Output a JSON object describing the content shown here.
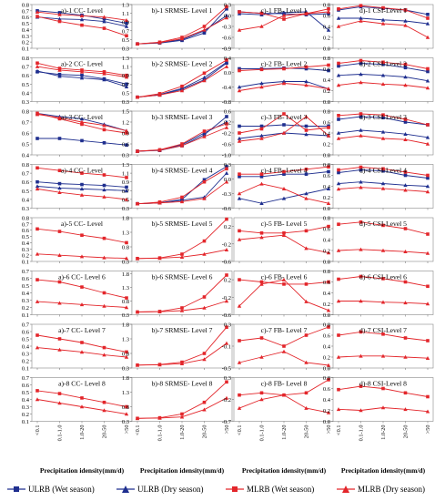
{
  "x_categories": [
    "<0.1",
    "0.1-1.0",
    "1.0-20",
    "20-50",
    ">50"
  ],
  "xlabel": "Precipitation idensity(mm/d)",
  "series_meta": [
    {
      "name": "ULRB (Wet season)",
      "color": "#1f2f8f",
      "marker": "square"
    },
    {
      "name": "ULRB (Dry season)",
      "color": "#1f2f8f",
      "marker": "triangle"
    },
    {
      "name": "MLRB (Wet season)",
      "color": "#e3262b",
      "marker": "square"
    },
    {
      "name": "MLRB (Dry season)",
      "color": "#e3262b",
      "marker": "triangle"
    }
  ],
  "chart_data": [
    {
      "type": "line",
      "title": "a)-1  CC-  Level",
      "ylim": [
        0.1,
        0.8
      ],
      "yticks": [
        0.1,
        0.2,
        0.3,
        0.4,
        0.5,
        0.6,
        0.7,
        0.8
      ],
      "series": [
        [
          0.7,
          0.67,
          0.63,
          0.57,
          0.5
        ],
        [
          0.6,
          0.57,
          0.56,
          0.53,
          0.45
        ],
        [
          0.61,
          0.53,
          0.47,
          0.42,
          0.3
        ],
        [
          0.68,
          0.64,
          0.62,
          0.6,
          0.55
        ]
      ]
    },
    {
      "type": "line",
      "title": "b)-1 SRMSE- Level 1",
      "ylim": [
        0.3,
        1.3
      ],
      "yticks": [
        0.3,
        0.5,
        0.7,
        0.9,
        1.1,
        1.3
      ],
      "series": [
        [
          0.4,
          0.42,
          0.48,
          0.65,
          1.2
        ],
        [
          0.4,
          0.43,
          0.5,
          0.7,
          1.05
        ],
        [
          0.4,
          0.44,
          0.55,
          0.8,
          1.25
        ],
        [
          0.4,
          0.43,
          0.52,
          0.72,
          1.0
        ]
      ]
    },
    {
      "type": "line",
      "title": "c)-1 FB- Level 1",
      "ylim": [
        -0.9,
        0.3
      ],
      "yticks": [
        -0.9,
        -0.6,
        -0.3,
        0.0,
        0.3
      ],
      "series": [
        [
          0.1,
          0.06,
          0.05,
          0.02,
          0.05
        ],
        [
          0.05,
          0.02,
          0.08,
          0.1,
          -0.4
        ],
        [
          0.1,
          0.06,
          -0.1,
          0.05,
          0.18
        ],
        [
          -0.4,
          -0.3,
          0.0,
          0.05,
          0.1
        ]
      ]
    },
    {
      "type": "line",
      "title": "d)-1 CSI-Level 1",
      "ylim": [
        0.0,
        0.8
      ],
      "yticks": [
        0.0,
        0.2,
        0.4,
        0.6,
        0.8
      ],
      "series": [
        [
          0.7,
          0.76,
          0.73,
          0.7,
          0.62
        ],
        [
          0.55,
          0.55,
          0.52,
          0.5,
          0.45
        ],
        [
          0.72,
          0.78,
          0.74,
          0.7,
          0.55
        ],
        [
          0.4,
          0.5,
          0.45,
          0.42,
          0.2
        ]
      ]
    },
    {
      "type": "line",
      "title": "a)-2  CC-  Level",
      "ylim": [
        0.3,
        0.8
      ],
      "yticks": [
        0.3,
        0.4,
        0.5,
        0.6,
        0.7,
        0.8
      ],
      "series": [
        [
          0.64,
          0.61,
          0.6,
          0.56,
          0.5
        ],
        [
          0.65,
          0.59,
          0.57,
          0.55,
          0.47
        ],
        [
          0.74,
          0.68,
          0.66,
          0.64,
          0.6
        ],
        [
          0.7,
          0.66,
          0.64,
          0.62,
          0.58
        ]
      ]
    },
    {
      "type": "line",
      "title": "b)-2 SRMSE- Level 2",
      "ylim": [
        0.3,
        1.3
      ],
      "yticks": [
        0.3,
        0.5,
        0.7,
        0.9,
        1.1,
        1.3
      ],
      "series": [
        [
          0.4,
          0.45,
          0.58,
          0.8,
          1.18
        ],
        [
          0.4,
          0.46,
          0.6,
          0.85,
          1.2
        ],
        [
          0.4,
          0.48,
          0.65,
          0.95,
          1.25
        ],
        [
          0.4,
          0.45,
          0.55,
          0.78,
          1.1
        ]
      ]
    },
    {
      "type": "line",
      "title": "c)-2 FB- Level 2",
      "ylim": [
        -0.8,
        0.4
      ],
      "yticks": [
        -0.8,
        -0.4,
        0.0,
        0.4
      ],
      "series": [
        [
          0.1,
          0.1,
          0.12,
          0.1,
          0.05
        ],
        [
          -0.4,
          -0.3,
          -0.25,
          -0.25,
          -0.45
        ],
        [
          0.05,
          0.08,
          0.1,
          0.15,
          0.2
        ],
        [
          -0.5,
          -0.4,
          -0.3,
          -0.35,
          -0.45
        ]
      ]
    },
    {
      "type": "line",
      "title": "d)-2 CSI-Level 2",
      "ylim": [
        0.0,
        0.8
      ],
      "yticks": [
        0.0,
        0.2,
        0.4,
        0.6,
        0.8
      ],
      "series": [
        [
          0.65,
          0.7,
          0.68,
          0.62,
          0.55
        ],
        [
          0.48,
          0.5,
          0.48,
          0.45,
          0.38
        ],
        [
          0.7,
          0.75,
          0.72,
          0.68,
          0.6
        ],
        [
          0.3,
          0.35,
          0.32,
          0.3,
          0.25
        ]
      ]
    },
    {
      "type": "line",
      "title": "a)-3  CC-  Level",
      "ylim": [
        0.4,
        0.8
      ],
      "yticks": [
        0.4,
        0.5,
        0.6,
        0.7,
        0.8
      ],
      "series": [
        [
          0.55,
          0.55,
          0.53,
          0.51,
          0.49
        ],
        [
          0.78,
          0.75,
          0.73,
          0.68,
          0.62
        ],
        [
          0.78,
          0.73,
          0.68,
          0.63,
          0.6
        ],
        [
          0.77,
          0.74,
          0.7,
          0.67,
          0.62
        ]
      ]
    },
    {
      "type": "line",
      "title": "b)-3 SRMSE- Level 3",
      "ylim": [
        0.3,
        1.5
      ],
      "yticks": [
        0.3,
        0.6,
        0.9,
        1.2,
        1.5
      ],
      "series": [
        [
          0.4,
          0.42,
          0.55,
          0.85,
          1.35
        ],
        [
          0.4,
          0.43,
          0.58,
          0.9,
          1.2
        ],
        [
          0.4,
          0.44,
          0.6,
          0.95,
          1.15
        ],
        [
          0.4,
          0.43,
          0.55,
          0.8,
          1.05
        ]
      ]
    },
    {
      "type": "line",
      "title": "c)-3 FB- Level 3",
      "ylim": [
        -1.0,
        0.6
      ],
      "yticks": [
        -1.0,
        -0.6,
        -0.2,
        0.2,
        0.6
      ],
      "series": [
        [
          0.05,
          0.05,
          0.1,
          0.05,
          0.05
        ],
        [
          -0.4,
          -0.3,
          -0.2,
          -0.25,
          -0.3
        ],
        [
          -0.2,
          -0.05,
          0.5,
          -0.1,
          0.0
        ],
        [
          -0.5,
          -0.4,
          -0.2,
          0.4,
          -0.3
        ]
      ]
    },
    {
      "type": "line",
      "title": "d)-3 CSI-Level 3",
      "ylim": [
        0.0,
        0.8
      ],
      "yticks": [
        0.0,
        0.2,
        0.4,
        0.6,
        0.8
      ],
      "series": [
        [
          0.65,
          0.7,
          0.68,
          0.6,
          0.55
        ],
        [
          0.4,
          0.45,
          0.42,
          0.38,
          0.32
        ],
        [
          0.72,
          0.75,
          0.73,
          0.65,
          0.55
        ],
        [
          0.3,
          0.35,
          0.3,
          0.28,
          0.2
        ]
      ]
    },
    {
      "type": "line",
      "title": "a)-4  CC-  Level",
      "ylim": [
        0.3,
        0.8
      ],
      "yticks": [
        0.3,
        0.4,
        0.5,
        0.6,
        0.7,
        0.8
      ],
      "series": [
        [
          0.6,
          0.58,
          0.57,
          0.56,
          0.54
        ],
        [
          0.55,
          0.53,
          0.52,
          0.51,
          0.5
        ],
        [
          0.76,
          0.73,
          0.7,
          0.68,
          0.65
        ],
        [
          0.52,
          0.48,
          0.45,
          0.43,
          0.4
        ]
      ]
    },
    {
      "type": "line",
      "title": "b)-4 SRMSE- Level 4",
      "ylim": [
        0.3,
        1.3
      ],
      "yticks": [
        0.3,
        0.5,
        0.7,
        0.9,
        1.1,
        1.3
      ],
      "series": [
        [
          0.4,
          0.42,
          0.5,
          0.95,
          1.25
        ],
        [
          0.4,
          0.42,
          0.48,
          0.55,
          1.1
        ],
        [
          0.4,
          0.44,
          0.55,
          0.9,
          1.2
        ],
        [
          0.4,
          0.42,
          0.45,
          0.52,
          0.9
        ]
      ]
    },
    {
      "type": "line",
      "title": "c)-4 FB- Level 4",
      "ylim": [
        -0.6,
        0.3
      ],
      "yticks": [
        -0.6,
        -0.3,
        0.0,
        0.3
      ],
      "series": [
        [
          0.05,
          0.05,
          0.1,
          0.1,
          0.15
        ],
        [
          -0.4,
          -0.5,
          -0.4,
          -0.3,
          -0.2
        ],
        [
          0.1,
          0.1,
          0.15,
          0.2,
          0.25
        ],
        [
          -0.3,
          -0.1,
          -0.2,
          -0.4,
          -0.5
        ]
      ]
    },
    {
      "type": "line",
      "title": "d)-4 CSI-Level 4",
      "ylim": [
        0.0,
        0.8
      ],
      "yticks": [
        0.0,
        0.2,
        0.4,
        0.6,
        0.8
      ],
      "series": [
        [
          0.65,
          0.7,
          0.68,
          0.6,
          0.55
        ],
        [
          0.45,
          0.48,
          0.45,
          0.42,
          0.4
        ],
        [
          0.7,
          0.75,
          0.72,
          0.66,
          0.6
        ],
        [
          0.35,
          0.38,
          0.36,
          0.33,
          0.3
        ]
      ]
    },
    {
      "type": "line",
      "title": "a)-5  CC-  Level",
      "ylim": [
        0.1,
        0.8
      ],
      "yticks": [
        0.1,
        0.2,
        0.3,
        0.4,
        0.5,
        0.6,
        0.7,
        0.8
      ],
      "series": [
        [],
        [],
        [
          0.62,
          0.58,
          0.52,
          0.47,
          0.4
        ],
        [
          0.22,
          0.2,
          0.18,
          0.16,
          0.15
        ]
      ]
    },
    {
      "type": "line",
      "title": "b)-5 SRMSE- Level 5",
      "ylim": [
        0.3,
        1.8
      ],
      "yticks": [
        0.3,
        0.8,
        1.3,
        1.8
      ],
      "series": [
        [],
        [],
        [
          0.4,
          0.42,
          0.55,
          1.0,
          1.75
        ],
        [
          0.4,
          0.41,
          0.45,
          0.55,
          0.7
        ]
      ]
    },
    {
      "type": "line",
      "title": "c)-5 FB- Level 5",
      "ylim": [
        -0.6,
        0.4
      ],
      "yticks": [
        -0.6,
        -0.2,
        0.2
      ],
      "series": [
        [],
        [],
        [
          0.1,
          0.05,
          0.05,
          0.1,
          0.2
        ],
        [
          -0.1,
          -0.05,
          0.0,
          -0.3,
          -0.4
        ]
      ]
    },
    {
      "type": "line",
      "title": "d)-5 CSI-Level 5",
      "ylim": [
        0.0,
        0.8
      ],
      "yticks": [
        0.0,
        0.2,
        0.4,
        0.6,
        0.8
      ],
      "series": [
        [],
        [],
        [
          0.68,
          0.72,
          0.66,
          0.6,
          0.5
        ],
        [
          0.2,
          0.22,
          0.2,
          0.18,
          0.15
        ]
      ]
    },
    {
      "type": "line",
      "title": "a)-6 CC- Level 6",
      "ylim": [
        0.1,
        0.7
      ],
      "yticks": [
        0.1,
        0.2,
        0.3,
        0.4,
        0.5,
        0.6,
        0.7
      ],
      "series": [
        [],
        [],
        [
          0.58,
          0.55,
          0.48,
          0.4,
          0.33
        ],
        [
          0.28,
          0.26,
          0.24,
          0.22,
          0.2
        ]
      ]
    },
    {
      "type": "line",
      "title": "b)-6 SRMSE- Level 6",
      "ylim": [
        0.3,
        1.9
      ],
      "yticks": [
        0.3,
        0.8,
        1.3,
        1.8
      ],
      "series": [
        [],
        [],
        [
          0.4,
          0.42,
          0.55,
          0.95,
          1.75
        ],
        [
          0.4,
          0.41,
          0.45,
          0.55,
          0.8
        ]
      ]
    },
    {
      "type": "line",
      "title": "c)-6 FB- Level 6",
      "ylim": [
        -0.6,
        0.4
      ],
      "yticks": [
        -0.6,
        -0.2,
        0.2
      ],
      "series": [
        [],
        [],
        [
          0.2,
          0.15,
          0.1,
          0.1,
          0.15
        ],
        [
          -0.4,
          0.1,
          0.2,
          -0.3,
          -0.5
        ]
      ]
    },
    {
      "type": "line",
      "title": "d)-6 CSI-Level 6",
      "ylim": [
        0.0,
        0.8
      ],
      "yticks": [
        0.0,
        0.2,
        0.4,
        0.6,
        0.8
      ],
      "series": [
        [],
        [],
        [
          0.65,
          0.7,
          0.66,
          0.6,
          0.52
        ],
        [
          0.25,
          0.25,
          0.23,
          0.22,
          0.2
        ]
      ]
    },
    {
      "type": "line",
      "title": "a)-7 CC- Level 7",
      "ylim": [
        0.1,
        0.7
      ],
      "yticks": [
        0.1,
        0.2,
        0.3,
        0.4,
        0.5,
        0.6,
        0.7
      ],
      "series": [
        [],
        [],
        [
          0.55,
          0.5,
          0.45,
          0.38,
          0.32
        ],
        [
          0.38,
          0.35,
          0.32,
          0.28,
          0.25
        ]
      ]
    },
    {
      "type": "line",
      "title": "b)-7 SRMSE- Level 7",
      "ylim": [
        0.3,
        1.8
      ],
      "yticks": [
        0.3,
        0.8,
        1.3,
        1.8
      ],
      "series": [
        [],
        [],
        [
          0.4,
          0.42,
          0.5,
          0.8,
          1.7
        ],
        [
          0.4,
          0.41,
          0.45,
          0.6,
          1.15
        ]
      ]
    },
    {
      "type": "line",
      "title": "c)-7 FB- Level 7",
      "ylim": [
        -0.5,
        0.3
      ],
      "yticks": [
        -0.5,
        -0.1,
        0.3
      ],
      "series": [
        [],
        [],
        [
          0.0,
          0.05,
          -0.1,
          0.1,
          0.25
        ],
        [
          -0.4,
          -0.3,
          -0.2,
          -0.4,
          -0.45
        ]
      ]
    },
    {
      "type": "line",
      "title": "d)-7 CSI-Level 7",
      "ylim": [
        0.0,
        0.8
      ],
      "yticks": [
        0.0,
        0.2,
        0.4,
        0.6,
        0.8
      ],
      "series": [
        [],
        [],
        [
          0.6,
          0.66,
          0.62,
          0.55,
          0.5
        ],
        [
          0.2,
          0.22,
          0.22,
          0.2,
          0.18
        ]
      ]
    },
    {
      "type": "line",
      "title": "a)-8 CC- Level 8",
      "ylim": [
        0.1,
        0.7
      ],
      "yticks": [
        0.1,
        0.2,
        0.3,
        0.4,
        0.5,
        0.6,
        0.7
      ],
      "series": [
        [],
        [],
        [
          0.52,
          0.48,
          0.42,
          0.36,
          0.3
        ],
        [
          0.4,
          0.35,
          0.3,
          0.25,
          0.2
        ]
      ]
    },
    {
      "type": "line",
      "title": "b)-8 SRMSE- Level 8",
      "ylim": [
        0.3,
        1.8
      ],
      "yticks": [
        0.3,
        0.8,
        1.3,
        1.8
      ],
      "series": [
        [],
        [],
        [
          0.4,
          0.42,
          0.55,
          0.95,
          1.65
        ],
        [
          0.4,
          0.41,
          0.45,
          0.7,
          1.1
        ]
      ]
    },
    {
      "type": "line",
      "title": "c)-8 FB- Level 8",
      "ylim": [
        -0.7,
        0.3
      ],
      "yticks": [
        -0.7,
        -0.2,
        0.3
      ],
      "series": [
        [],
        [],
        [
          -0.1,
          -0.05,
          -0.1,
          -0.05,
          0.25
        ],
        [
          -0.4,
          -0.2,
          -0.1,
          -0.4,
          -0.5
        ]
      ]
    },
    {
      "type": "line",
      "title": "d)-8 CSI-Level 8",
      "ylim": [
        0.0,
        0.8
      ],
      "yticks": [
        0.0,
        0.2,
        0.4,
        0.6,
        0.8
      ],
      "series": [
        [],
        [],
        [
          0.58,
          0.64,
          0.6,
          0.52,
          0.45
        ],
        [
          0.22,
          0.2,
          0.25,
          0.22,
          0.18
        ]
      ]
    }
  ]
}
